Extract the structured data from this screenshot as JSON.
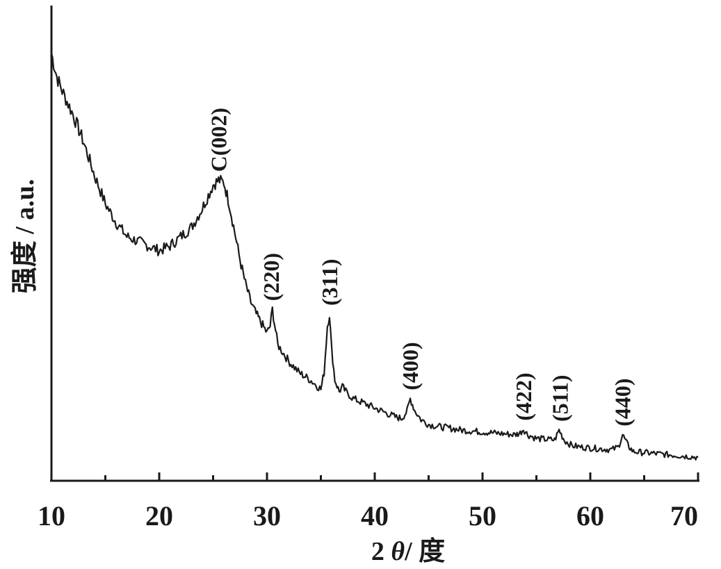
{
  "chart_data": {
    "type": "line",
    "title": "",
    "xlabel": "2 θ/ 度",
    "xlabel_parts": [
      "2 ",
      "θ",
      "/ 度"
    ],
    "ylabel": "强度 / a.u.",
    "xlim": [
      10,
      70
    ],
    "ylim": [
      0,
      100
    ],
    "y_ticks_shown": false,
    "x_ticks": [
      10,
      20,
      30,
      40,
      50,
      60,
      70
    ],
    "x_minor_ticks": [
      15,
      25,
      35,
      45,
      55,
      65
    ],
    "grid": false,
    "legend": "none",
    "line_color": "#1a1a1a",
    "series": [
      {
        "x": [
          10,
          10.5,
          11,
          12,
          13,
          14,
          15,
          16,
          17,
          18,
          19,
          20,
          21,
          22,
          23,
          24,
          25,
          25.5,
          26,
          26.5,
          27,
          27.5,
          28,
          28.5,
          29,
          29.5,
          30,
          30.3,
          30.5,
          30.8,
          31,
          32,
          33,
          34,
          35,
          35.3,
          35.6,
          35.8,
          36,
          36.3,
          36.7,
          37,
          37.3,
          38,
          39,
          40,
          41,
          42,
          42.5,
          43,
          43.3,
          43.7,
          44.3,
          45,
          46,
          47,
          48,
          49,
          50,
          51,
          52,
          53,
          53.5,
          53.8,
          54.2,
          55,
          56,
          56.7,
          57.1,
          57.6,
          58.3,
          59,
          60,
          61,
          62,
          62.6,
          63,
          63.5,
          64,
          65,
          66,
          67,
          68,
          69,
          70
        ],
        "y": [
          91,
          86,
          83,
          78,
          72,
          65,
          59,
          55,
          52,
          51,
          50,
          49,
          50,
          52,
          54,
          58,
          63,
          64,
          63.5,
          59,
          53,
          47,
          42,
          38,
          35.5,
          33.5,
          31.5,
          33,
          36.5,
          32,
          29,
          25.5,
          23,
          21.5,
          19.5,
          23,
          33,
          35.5,
          28,
          21.5,
          19,
          20,
          19,
          17.5,
          16.5,
          15.5,
          14.5,
          13.5,
          13.3,
          14.8,
          17.5,
          15,
          13,
          12,
          11.5,
          11.2,
          10.8,
          10.6,
          10.4,
          10.2,
          10,
          9.8,
          10.2,
          11,
          9.8,
          9,
          8.8,
          8.7,
          10.8,
          8.6,
          7.5,
          7.2,
          7,
          6.8,
          6.6,
          7.2,
          9.8,
          7.5,
          6.2,
          6,
          5.8,
          5.6,
          5.4,
          5.2,
          5
        ]
      }
    ],
    "annotations": [
      {
        "text": "C(002)",
        "x": 25.5,
        "y": 64
      },
      {
        "text": "(220)",
        "x": 30.4,
        "y": 36.5
      },
      {
        "text": "(311)",
        "x": 35.8,
        "y": 35.5
      },
      {
        "text": "(400)",
        "x": 43.3,
        "y": 17.5
      },
      {
        "text": "(422)",
        "x": 53.8,
        "y": 11
      },
      {
        "text": "(511)",
        "x": 57.2,
        "y": 10.8
      },
      {
        "text": "(440)",
        "x": 63.0,
        "y": 9.8
      }
    ]
  }
}
